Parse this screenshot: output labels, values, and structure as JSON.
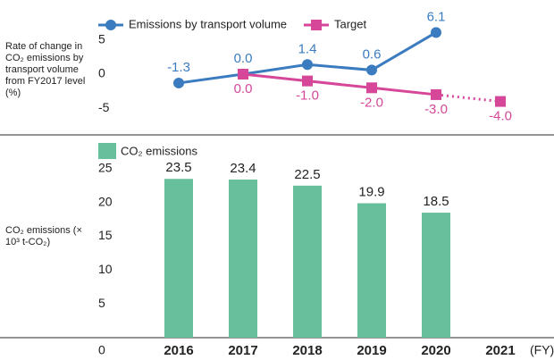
{
  "chart_data": [
    {
      "type": "line",
      "y_label": "Rate of change in CO₂ emissions by transport volume from FY2017 level (%)",
      "series": [
        {
          "name": "Emissions by transport volume",
          "color": "#3b7cc0",
          "marker": "circle",
          "values": [
            -1.3,
            0,
            1.4,
            0.6,
            6.1,
            null
          ],
          "value_labels": [
            "-1.3",
            "0.0",
            "1.4",
            "0.6",
            "6.1",
            null
          ]
        },
        {
          "name": "Target",
          "color": "#d6479a",
          "marker": "square",
          "values": [
            null,
            0,
            -1,
            -2,
            -3,
            -4
          ],
          "value_labels": [
            null,
            "0.0",
            "-1.0",
            "-2.0",
            "-3.0",
            "-4.0"
          ]
        }
      ],
      "ylim": [
        -8.5,
        8.5
      ],
      "yticks": [
        5,
        0,
        -5
      ]
    },
    {
      "type": "bar",
      "y_label": "CO₂ emissions (× 10³ t-CO₂)",
      "x_label": "(FY)",
      "categories": [
        "2016",
        "2017",
        "2018",
        "2019",
        "2020",
        "2021"
      ],
      "series": [
        {
          "name": "CO₂ emissions",
          "color": "#67c09b",
          "values": [
            23.5,
            23.4,
            22.5,
            19.9,
            18.5,
            null
          ]
        }
      ],
      "ylim": [
        0,
        27.5
      ],
      "yticks": [
        0,
        5,
        10,
        15,
        20,
        25
      ]
    }
  ]
}
